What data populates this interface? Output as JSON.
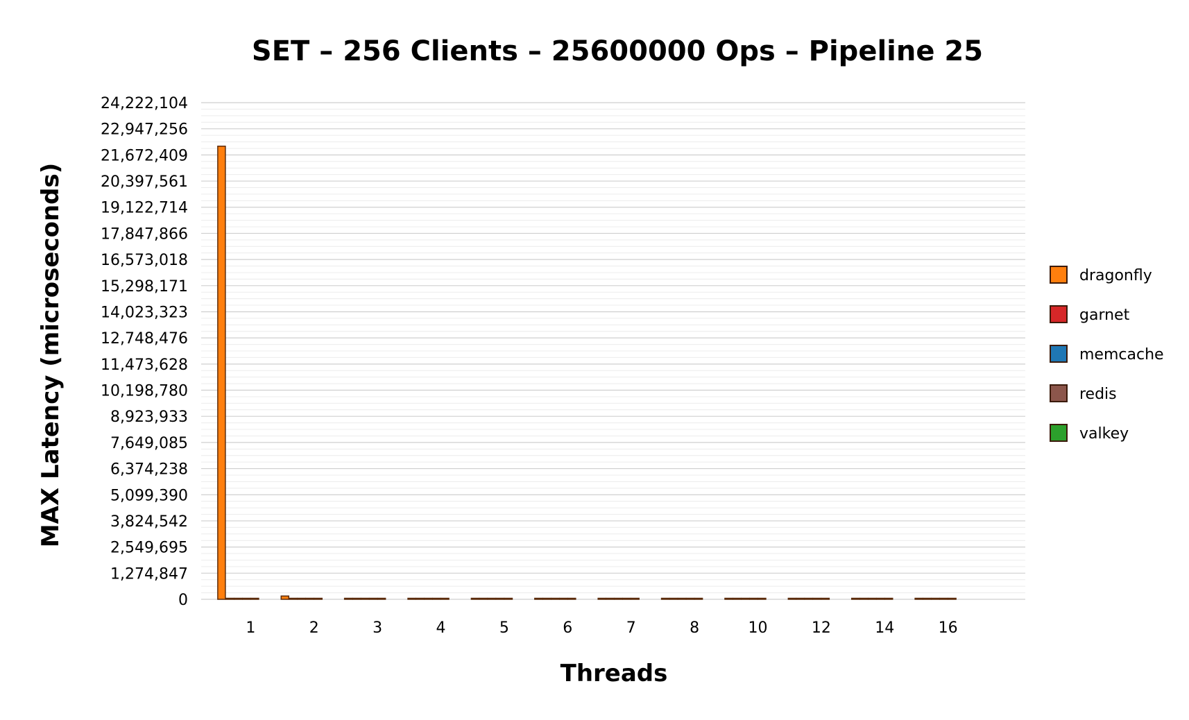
{
  "chart_data": {
    "type": "bar",
    "title": "SET – 256 Clients – 25600000 Ops – Pipeline 25",
    "xlabel": "Threads",
    "ylabel": "MAX Latency (microseconds)",
    "categories": [
      "1",
      "2",
      "3",
      "4",
      "5",
      "6",
      "7",
      "8",
      "10",
      "12",
      "14",
      "16"
    ],
    "yticks": [
      "0",
      "1,274,847",
      "2,549,695",
      "3,824,542",
      "5,099,390",
      "6,374,238",
      "7,649,085",
      "8,923,933",
      "10,198,780",
      "11,473,628",
      "12,748,476",
      "14,023,323",
      "15,298,171",
      "16,573,018",
      "17,847,866",
      "19,122,714",
      "20,397,561",
      "21,672,409",
      "22,947,256",
      "24,222,104"
    ],
    "ylim": [
      0,
      24222104
    ],
    "grid": true,
    "legend_position": "right",
    "series": [
      {
        "name": "dragonfly",
        "color": "#ff7f0e",
        "values": [
          22100000,
          160000,
          15000,
          20000,
          25000,
          20000,
          30000,
          25000,
          30000,
          15000,
          30000,
          30000
        ]
      },
      {
        "name": "garnet",
        "color": "#d62728",
        "values": [
          20000,
          25000,
          15000,
          15000,
          40000,
          20000,
          20000,
          15000,
          30000,
          15000,
          45000,
          25000
        ]
      },
      {
        "name": "memcache",
        "color": "#1f77b4",
        "values": [
          10000,
          10000,
          10000,
          10000,
          10000,
          10000,
          10000,
          10000,
          10000,
          10000,
          10000,
          10000
        ]
      },
      {
        "name": "redis",
        "color": "#8c564b",
        "values": [
          25000,
          25000,
          25000,
          25000,
          25000,
          25000,
          25000,
          25000,
          25000,
          25000,
          25000,
          25000
        ]
      },
      {
        "name": "valkey",
        "color": "#2ca02c",
        "values": [
          25000,
          25000,
          25000,
          25000,
          25000,
          25000,
          25000,
          25000,
          25000,
          25000,
          25000,
          25000
        ]
      }
    ]
  }
}
